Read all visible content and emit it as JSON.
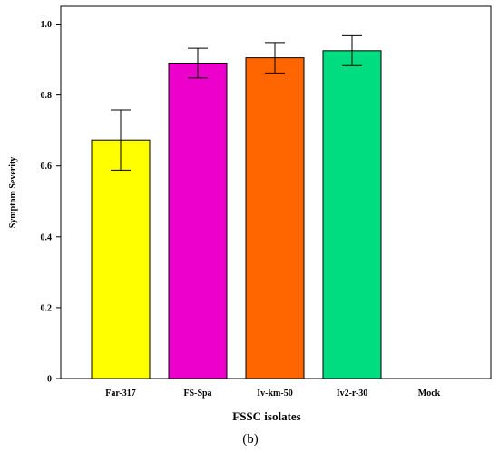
{
  "chart_data": {
    "type": "bar",
    "categories": [
      "Far-317",
      "FS-Spa",
      "Iv-km-50",
      "Iv2-r-30",
      "Mock"
    ],
    "values": [
      0.673,
      0.89,
      0.905,
      0.925,
      0
    ],
    "error": [
      0.085,
      0.042,
      0.043,
      0.042,
      0
    ],
    "colors": [
      "#FFFF00",
      "#EE00CC",
      "#FF6600",
      "#00DD80",
      "#FFFFFF"
    ],
    "xlabel": "FSSC isolates",
    "ylabel": "Symptom Severity",
    "ylim": [
      0,
      1.05
    ],
    "yticks": [
      0,
      0.2,
      0.4,
      0.6,
      0.8,
      1.0
    ],
    "ytick_labels": [
      "0",
      "0.2",
      "0.4",
      "0.6",
      "0.8",
      "1.0"
    ],
    "grid": false,
    "panel_label": "(b)"
  }
}
